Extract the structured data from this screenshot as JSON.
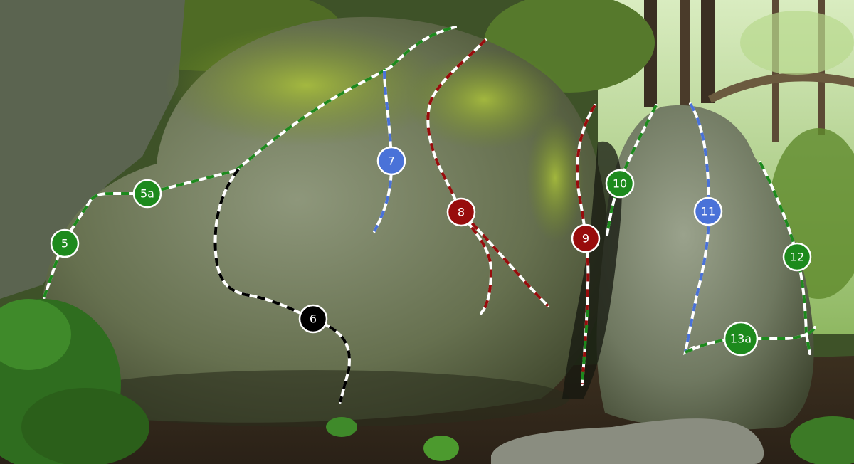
{
  "routes": [
    {
      "id": "route-5",
      "label": "5",
      "color": "#1d8a1d"
    },
    {
      "id": "route-5a",
      "label": "5a",
      "color": "#1d8a1d"
    },
    {
      "id": "route-6",
      "label": "6",
      "color": "#000000"
    },
    {
      "id": "route-7",
      "label": "7",
      "color": "#4a72d8"
    },
    {
      "id": "route-8",
      "label": "8",
      "color": "#980c0c"
    },
    {
      "id": "route-9",
      "label": "9",
      "color": "#980c0c"
    },
    {
      "id": "route-10",
      "label": "10",
      "color": "#1d8a1d"
    },
    {
      "id": "route-11",
      "label": "11",
      "color": "#4a72d8"
    },
    {
      "id": "route-12",
      "label": "12",
      "color": "#1d8a1d"
    },
    {
      "id": "route-13a",
      "label": "13a",
      "color": "#1d8a1d"
    }
  ],
  "colors": {
    "line_alt": "#ffffff",
    "marker_stroke": "#ffffff",
    "green": "#1d8a1d",
    "blue": "#4a72d8",
    "red": "#980c0c",
    "black": "#000000"
  }
}
